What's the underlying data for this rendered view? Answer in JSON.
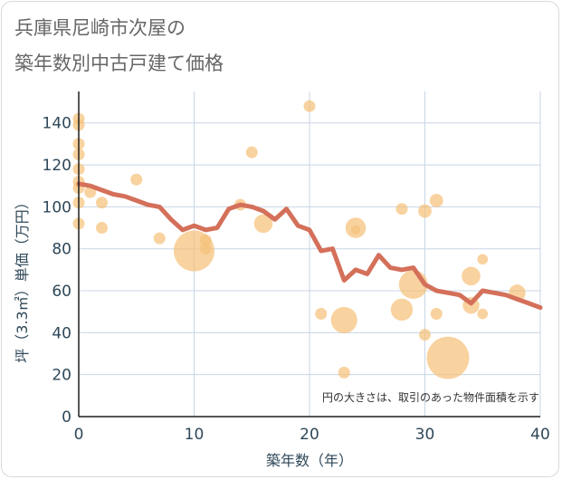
{
  "title_lines": [
    "兵庫県尼崎市次屋の",
    "築年数別中古戸建て価格"
  ],
  "note": "円の大きさは、取引のあった物件面積を示す",
  "chart_data": {
    "type": "scatter",
    "xlabel": "築年数（年）",
    "ylabel": "坪（3.3㎡）単価（万円）",
    "xlim": [
      0,
      40
    ],
    "ylim": [
      0,
      155
    ],
    "xticks": [
      0,
      10,
      20,
      30,
      40
    ],
    "yticks": [
      0,
      20,
      40,
      60,
      80,
      100,
      120,
      140
    ],
    "grid": true,
    "colors": {
      "bubble": "#f5c17a",
      "trend": "#d4705a",
      "grid": "#c8d6e5"
    },
    "bubbles": [
      {
        "x": 0,
        "y": 142,
        "size": 1
      },
      {
        "x": 0,
        "y": 139,
        "size": 1
      },
      {
        "x": 0,
        "y": 130,
        "size": 1
      },
      {
        "x": 0,
        "y": 125,
        "size": 1
      },
      {
        "x": 0,
        "y": 118,
        "size": 1
      },
      {
        "x": 0,
        "y": 112,
        "size": 1
      },
      {
        "x": 0,
        "y": 109,
        "size": 1
      },
      {
        "x": 0,
        "y": 102,
        "size": 1
      },
      {
        "x": 0,
        "y": 92,
        "size": 1
      },
      {
        "x": 1,
        "y": 107,
        "size": 1
      },
      {
        "x": 2,
        "y": 102,
        "size": 1
      },
      {
        "x": 2,
        "y": 90,
        "size": 1
      },
      {
        "x": 5,
        "y": 113,
        "size": 1
      },
      {
        "x": 7,
        "y": 85,
        "size": 1
      },
      {
        "x": 10,
        "y": 79,
        "size": 12
      },
      {
        "x": 11,
        "y": 84,
        "size": 1
      },
      {
        "x": 11,
        "y": 80,
        "size": 1
      },
      {
        "x": 14,
        "y": 101,
        "size": 1
      },
      {
        "x": 15,
        "y": 126,
        "size": 1
      },
      {
        "x": 16,
        "y": 92,
        "size": 2.5
      },
      {
        "x": 20,
        "y": 148,
        "size": 1
      },
      {
        "x": 21,
        "y": 49,
        "size": 1
      },
      {
        "x": 23,
        "y": 46,
        "size": 5
      },
      {
        "x": 23,
        "y": 21,
        "size": 1
      },
      {
        "x": 24,
        "y": 90,
        "size": 3
      },
      {
        "x": 24,
        "y": 89,
        "size": 0.6
      },
      {
        "x": 28,
        "y": 99,
        "size": 1
      },
      {
        "x": 28,
        "y": 51,
        "size": 3.5
      },
      {
        "x": 29,
        "y": 63,
        "size": 6
      },
      {
        "x": 30,
        "y": 98,
        "size": 1.3
      },
      {
        "x": 30,
        "y": 39,
        "size": 1
      },
      {
        "x": 31,
        "y": 103,
        "size": 1.3
      },
      {
        "x": 31,
        "y": 49,
        "size": 1
      },
      {
        "x": 32,
        "y": 28,
        "size": 13
      },
      {
        "x": 34,
        "y": 67,
        "size": 2.5
      },
      {
        "x": 34,
        "y": 53,
        "size": 2
      },
      {
        "x": 35,
        "y": 75,
        "size": 0.8
      },
      {
        "x": 35,
        "y": 49,
        "size": 0.8
      },
      {
        "x": 38,
        "y": 59,
        "size": 2
      }
    ],
    "trend": {
      "x": [
        0,
        1,
        2,
        3,
        4,
        5,
        6,
        7,
        8,
        9,
        10,
        11,
        12,
        13,
        14,
        15,
        16,
        17,
        18,
        19,
        20,
        21,
        22,
        23,
        24,
        25,
        26,
        27,
        28,
        29,
        30,
        31,
        32,
        33,
        34,
        35,
        36,
        37,
        38,
        39,
        40
      ],
      "y": [
        111,
        110,
        108,
        106,
        105,
        103,
        101,
        100,
        94,
        89,
        91,
        89,
        90,
        99,
        101,
        100,
        98,
        94,
        99,
        91,
        89,
        79,
        80,
        65,
        70,
        68,
        77,
        71,
        70,
        71,
        63,
        60,
        59,
        58,
        54,
        60,
        59,
        58,
        56,
        54,
        52
      ]
    }
  }
}
